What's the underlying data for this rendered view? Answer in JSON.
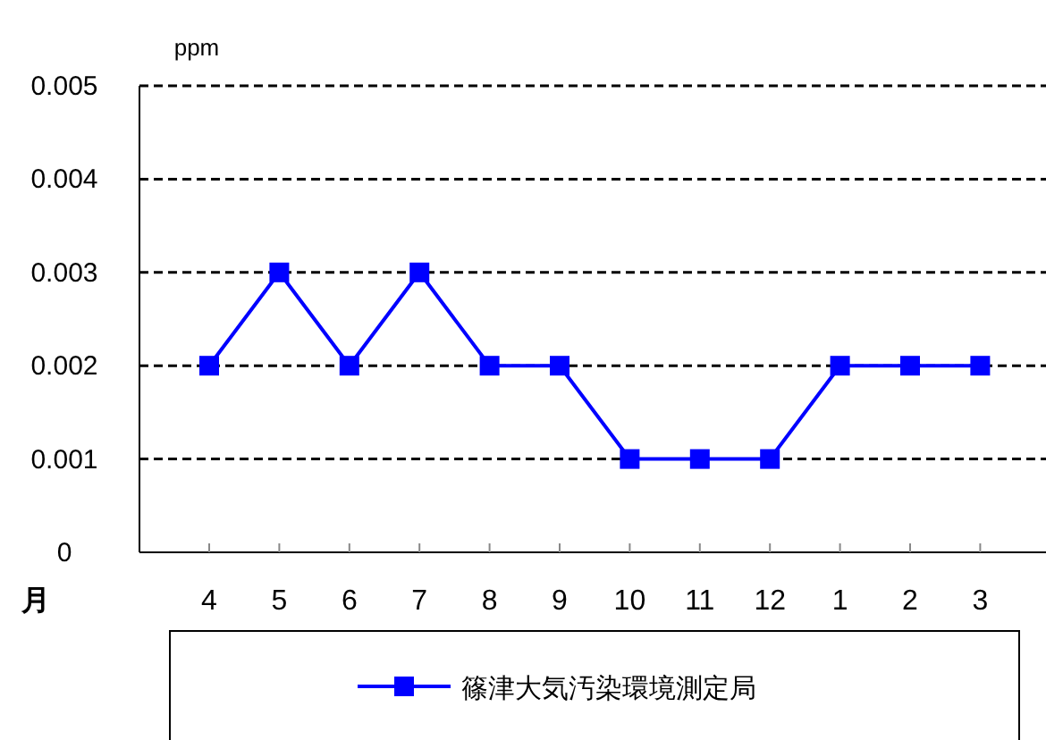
{
  "chart_data": {
    "type": "line",
    "categories": [
      "4",
      "5",
      "6",
      "7",
      "8",
      "9",
      "10",
      "11",
      "12",
      "1",
      "2",
      "3"
    ],
    "series": [
      {
        "name": "篠津大気汚染環境測定局",
        "color": "#0000ff",
        "values": [
          0.002,
          0.003,
          0.002,
          0.003,
          0.002,
          0.002,
          0.001,
          0.001,
          0.001,
          0.002,
          0.002,
          0.002
        ]
      }
    ],
    "ylim": [
      0,
      0.005
    ],
    "yticks": [
      0,
      0.001,
      0.002,
      0.003,
      0.004,
      0.005
    ],
    "ylabel": "ppm",
    "xlabel": "月",
    "grid": "y",
    "legend": "bottom",
    "marker": "square",
    "line_style": "solid"
  }
}
